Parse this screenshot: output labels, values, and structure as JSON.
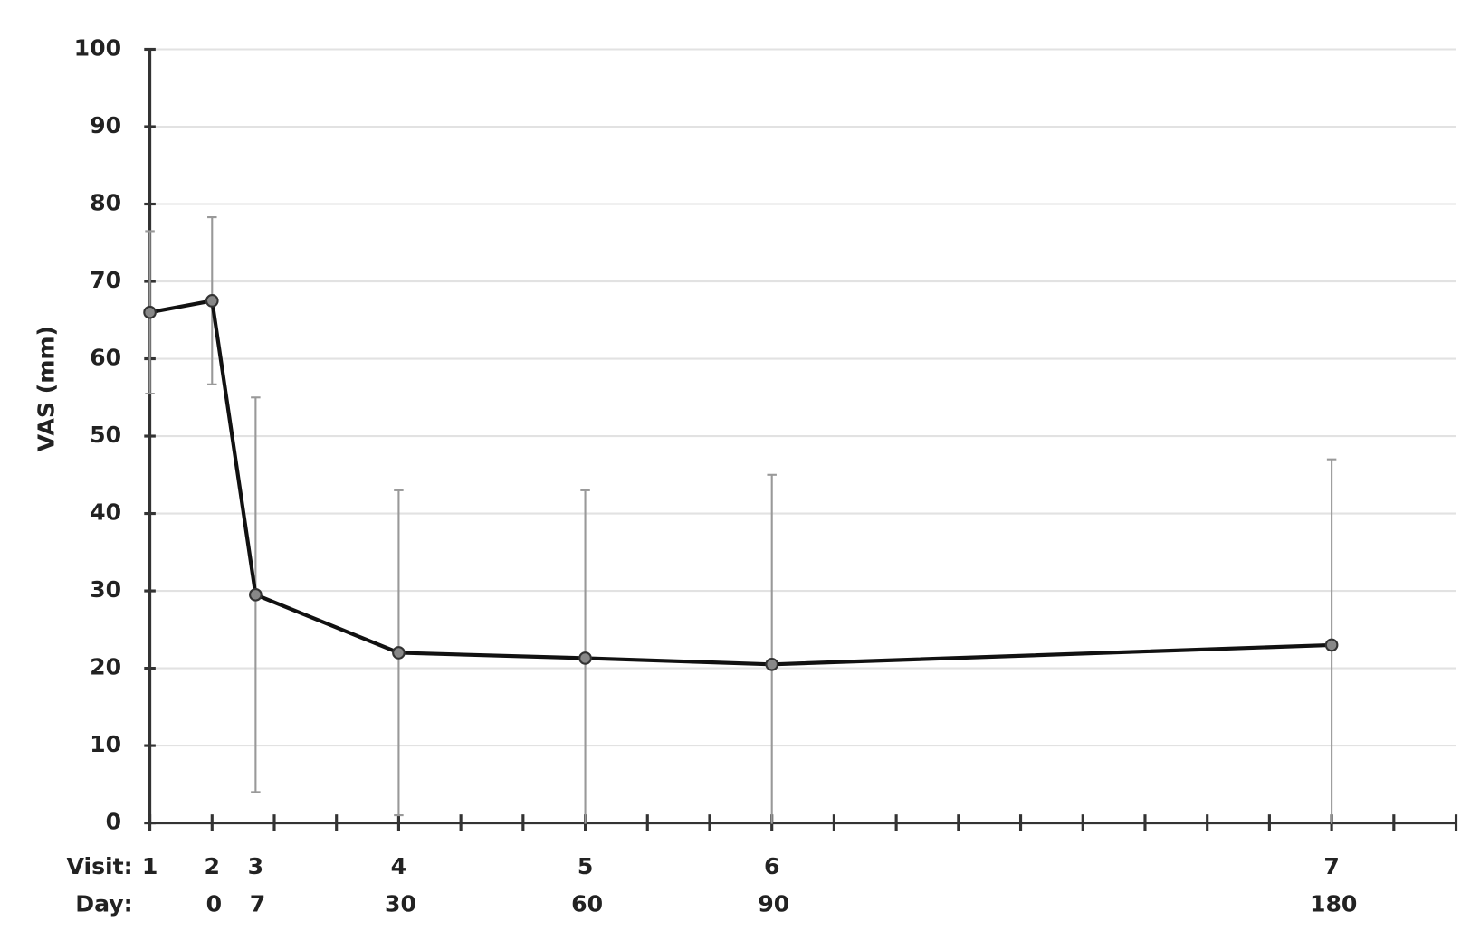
{
  "chart_data": {
    "type": "line",
    "y_label": "VAS (mm)",
    "x_row_labels": [
      "Visit:",
      "Day:"
    ],
    "visits": [
      1,
      2,
      3,
      4,
      5,
      6,
      7
    ],
    "x": [
      -10,
      0,
      7,
      30,
      60,
      90,
      180
    ],
    "series": [
      {
        "color": "#111111",
        "values": [
          66,
          67.5,
          29.5,
          22,
          21.3,
          20.5,
          23
        ],
        "errors": [
          10.5,
          10.8,
          25.5,
          21,
          21.7,
          24.5,
          24
        ]
      }
    ],
    "xlim": [
      -10,
      200
    ],
    "xticks": [
      -10,
      0,
      10,
      20,
      30,
      40,
      50,
      60,
      70,
      80,
      90,
      100,
      110,
      120,
      130,
      140,
      150,
      160,
      170,
      180,
      190,
      200
    ],
    "ylim": [
      0,
      100
    ],
    "yticks": [
      0,
      10,
      20,
      30,
      40,
      50,
      60,
      70,
      80,
      90,
      100
    ],
    "grid": true
  }
}
